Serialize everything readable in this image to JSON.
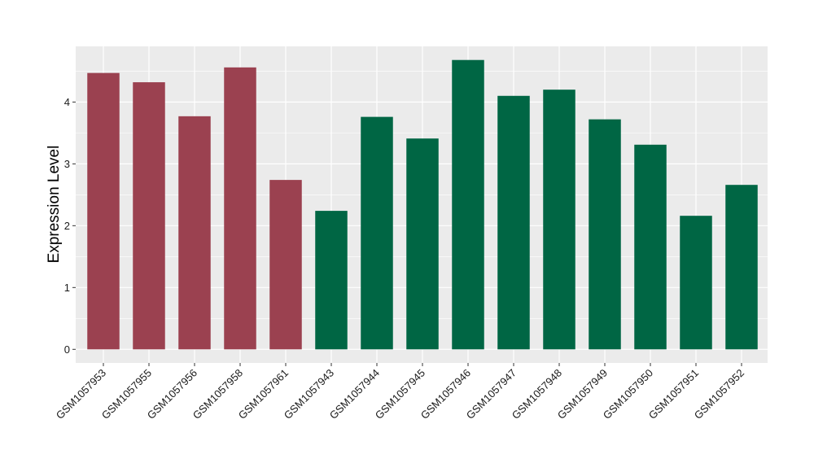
{
  "chart_data": {
    "type": "bar",
    "title": "",
    "xlabel": "",
    "ylabel": "Expression Level",
    "categories": [
      "GSM1057953",
      "GSM1057955",
      "GSM1057956",
      "GSM1057958",
      "GSM1057961",
      "GSM1057943",
      "GSM1057944",
      "GSM1057945",
      "GSM1057946",
      "GSM1057947",
      "GSM1057948",
      "GSM1057949",
      "GSM1057950",
      "GSM1057951",
      "GSM1057952"
    ],
    "values": [
      4.47,
      4.32,
      3.77,
      4.56,
      2.74,
      2.24,
      3.76,
      3.41,
      4.68,
      4.1,
      4.2,
      3.72,
      3.31,
      2.16,
      2.66
    ],
    "bar_colors": [
      "#9b4150",
      "#9b4150",
      "#9b4150",
      "#9b4150",
      "#9b4150",
      "#006644",
      "#006644",
      "#006644",
      "#006644",
      "#006644",
      "#006644",
      "#006644",
      "#006644",
      "#006644",
      "#006644"
    ],
    "ylim": [
      -0.22,
      4.9
    ],
    "yticks": [
      0,
      1,
      2,
      3,
      4
    ],
    "ytick_labels": [
      "0",
      "1",
      "2",
      "3",
      "4"
    ],
    "grid": true,
    "legend": "none",
    "panel_background": "#ebebeb",
    "grid_color": "#ffffff"
  }
}
